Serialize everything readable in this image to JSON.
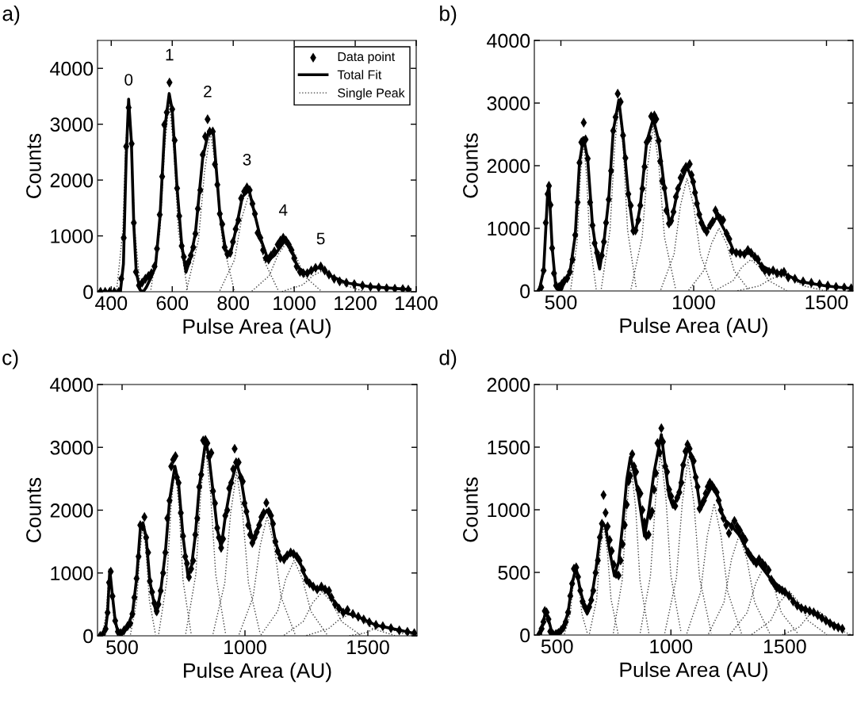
{
  "chart_data": [
    {
      "type": "scatter",
      "title": "a)",
      "xlabel": "Pulse Area (AU)",
      "ylabel": "Counts",
      "xlim": [
        355,
        1400
      ],
      "ylim": [
        0,
        4500
      ],
      "xticks": [
        400,
        600,
        800,
        1000,
        1200,
        1400
      ],
      "yticks": [
        0,
        1000,
        2000,
        3000,
        4000
      ],
      "legend": "top right",
      "annotations": [
        {
          "text": "0",
          "x": 457,
          "y": 3298
        },
        {
          "text": "1",
          "x": 591,
          "y": 3746
        },
        {
          "text": "2",
          "x": 716,
          "y": 3088
        },
        {
          "text": "3",
          "x": 845,
          "y": 1868
        },
        {
          "text": "4",
          "x": 964,
          "y": 966
        },
        {
          "text": "5",
          "x": 1087,
          "y": 454
        }
      ],
      "series": [
        {
          "name": "Data point",
          "marker": "diamond",
          "color": "#000000",
          "x": [
            365,
            380,
            395,
            410,
            425,
            433,
            441,
            449,
            457,
            467,
            474,
            481,
            491,
            501,
            512,
            522,
            532,
            542,
            550,
            559,
            567,
            574,
            582,
            591,
            600,
            608,
            616,
            623,
            631,
            638,
            646,
            653,
            661,
            669,
            676,
            684,
            692,
            700,
            708,
            716,
            723,
            733,
            740,
            748,
            756,
            764,
            772,
            781,
            790,
            799,
            808,
            817,
            826,
            836,
            845,
            854,
            863,
            871,
            880,
            889,
            898,
            907,
            916,
            924,
            935,
            946,
            955,
            964,
            973,
            982,
            991,
            1000,
            1008,
            1019,
            1030,
            1043,
            1056,
            1070,
            1087,
            1100,
            1114,
            1131,
            1149,
            1171,
            1197,
            1224,
            1250,
            1277,
            1303,
            1330,
            1356,
            1374
          ],
          "values": [
            0,
            0,
            0,
            0,
            0,
            234,
            966,
            2600,
            3298,
            2650,
            1234,
            356,
            112,
            161,
            234,
            283,
            332,
            454,
            771,
            1380,
            2063,
            2990,
            3210,
            3746,
            3268,
            2712,
            1854,
            1356,
            820,
            624,
            478,
            527,
            649,
            795,
            1039,
            1488,
            1820,
            2454,
            2780,
            3088,
            2868,
            2868,
            2283,
            1917,
            1395,
            1210,
            795,
            673,
            698,
            893,
            1122,
            1283,
            1673,
            1795,
            1868,
            1820,
            1576,
            1395,
            1054,
            966,
            746,
            600,
            576,
            649,
            722,
            844,
            917,
            966,
            917,
            844,
            746,
            600,
            454,
            356,
            332,
            332,
            380,
            429,
            454,
            380,
            307,
            234,
            185,
            161,
            137,
            112,
            88,
            78,
            63,
            54,
            49,
            39
          ]
        },
        {
          "name": "Total Fit",
          "type": "line",
          "line_style": "solid",
          "color": "#000000",
          "x": [
            355,
            430,
            440,
            449,
            457,
            466,
            474,
            482,
            495,
            505,
            515,
            530,
            545,
            560,
            575,
            590,
            600,
            616,
            631,
            645,
            660,
            676,
            700,
            720,
            735,
            756,
            775,
            790,
            808,
            830,
            852,
            870,
            890,
            915,
            935,
            970,
            990,
            1010,
            1040,
            1070,
            1090,
            1120,
            1170,
            1250,
            1380
          ],
          "values": [
            0,
            0,
            500,
            2400,
            3450,
            2700,
            1200,
            350,
            30,
            0,
            80,
            250,
            450,
            1350,
            2900,
            3550,
            3250,
            1850,
            850,
            350,
            600,
            1050,
            2400,
            2880,
            2850,
            1400,
            750,
            650,
            1100,
            1700,
            1820,
            1400,
            950,
            560,
            650,
            920,
            760,
            450,
            320,
            420,
            430,
            280,
            160,
            90,
            40
          ]
        },
        {
          "name": "Single Peak",
          "type": "line",
          "line_style": "dotted",
          "color": "#404040",
          "x": [
            418,
            438,
            447,
            457,
            467,
            477,
            496
          ],
          "values": [
            37,
            1105,
            2567,
            3400,
            2567,
            1105,
            37
          ]
        },
        {
          "type": "line",
          "line_style": "dotted",
          "color": "#404040",
          "x": [
            530,
            560,
            575,
            590,
            605,
            620,
            650
          ],
          "values": [
            37,
            1105,
            2567,
            3400,
            2567,
            1105,
            37
          ]
        },
        {
          "type": "line",
          "line_style": "dotted",
          "color": "#404040",
          "x": [
            647,
            686,
            706,
            725,
            745,
            764,
            803
          ],
          "values": [
            31,
            926,
            2152,
            2850,
            2152,
            926,
            31
          ]
        },
        {
          "type": "line",
          "line_style": "dotted",
          "color": "#404040",
          "x": [
            756,
            804,
            828,
            852,
            876,
            900,
            948
          ],
          "values": [
            19,
            569,
            1321,
            1750,
            1321,
            569,
            19
          ]
        },
        {
          "type": "line",
          "line_style": "dotted",
          "color": "#404040",
          "x": [
            861,
            918,
            947,
            975,
            1004,
            1032,
            1089
          ],
          "values": [
            10,
            286,
            664,
            880,
            664,
            286,
            10
          ]
        },
        {
          "type": "line",
          "line_style": "dotted",
          "color": "#404040",
          "x": [
            960,
            1028,
            1061,
            1095,
            1129,
            1163,
            1230
          ],
          "values": [
            4,
            124,
            287,
            380,
            287,
            124,
            4
          ]
        }
      ]
    },
    {
      "type": "scatter",
      "title": "b)",
      "xlabel": "Pulse Area (AU)",
      "ylabel": "Counts",
      "xlim": [
        400,
        1600
      ],
      "ylim": [
        0,
        4000
      ],
      "xticks": [
        500,
        1000,
        1500
      ],
      "yticks": [
        0,
        1000,
        2000,
        3000,
        4000
      ],
      "series": [
        {
          "marker": "diamond",
          "color": "#000000",
          "x": [
            418,
            426,
            435,
            443,
            450,
            455,
            461,
            467,
            474,
            482,
            493,
            503,
            513,
            524,
            534,
            544,
            554,
            563,
            570,
            577,
            586,
            593,
            601,
            610,
            619,
            627,
            636,
            644,
            654,
            662,
            670,
            680,
            689,
            697,
            706,
            714,
            725,
            734,
            743,
            754,
            763,
            773,
            781,
            792,
            799,
            807,
            815,
            823,
            833,
            840,
            852,
            859,
            868,
            874,
            881,
            890,
            897,
            907,
            915,
            924,
            933,
            941,
            951,
            961,
            971,
            985,
            992,
            998,
            1005,
            1012,
            1021,
            1029,
            1039,
            1049,
            1062,
            1072,
            1082,
            1091,
            1101,
            1111,
            1124,
            1134,
            1144,
            1160,
            1175,
            1191,
            1204,
            1216,
            1230,
            1242,
            1256,
            1268,
            1284,
            1299,
            1314,
            1330,
            1340,
            1356,
            1381,
            1412,
            1443,
            1474,
            1505,
            1536,
            1567,
            1593
          ],
          "values": [
            0,
            57,
            327,
            1089,
            1547,
            1678,
            1373,
            684,
            283,
            87,
            65,
            109,
            161,
            205,
            305,
            501,
            893,
            1416,
            2048,
            2375,
            2688,
            2418,
            2113,
            1416,
            1046,
            763,
            610,
            523,
            566,
            784,
            1089,
            1460,
            1917,
            2558,
            2776,
            3150,
            3020,
            2484,
            2122,
            1547,
            1364,
            959,
            967,
            1133,
            1364,
            1634,
            1983,
            2375,
            2440,
            2789,
            2802,
            2745,
            2397,
            2070,
            1756,
            1643,
            1285,
            1076,
            1120,
            1264,
            1503,
            1634,
            1808,
            1917,
            1983,
            2026,
            1852,
            1743,
            1569,
            1394,
            1220,
            1089,
            1002,
            946,
            1046,
            1111,
            1285,
            1198,
            1155,
            1133,
            915,
            828,
            641,
            610,
            597,
            588,
            654,
            610,
            545,
            501,
            392,
            327,
            305,
            327,
            283,
            283,
            305,
            218,
            196,
            153,
            131,
            109,
            87,
            65,
            57,
            44
          ]
        },
        {
          "type": "line",
          "line_style": "solid",
          "color": "#000000",
          "x": [
            418,
            435,
            450,
            455,
            467,
            480,
            488,
            495,
            503,
            513,
            534,
            554,
            570,
            585,
            601,
            619,
            636,
            646,
            662,
            680,
            697,
            718,
            734,
            754,
            773,
            781,
            799,
            823,
            848,
            868,
            890,
            907,
            915,
            941,
            975,
            998,
            1021,
            1045,
            1072,
            1090,
            1124,
            1150,
            1191,
            1216,
            1256,
            1300,
            1340,
            1400,
            1500,
            1593
          ],
          "values": [
            0,
            330,
            1550,
            1700,
            700,
            100,
            25,
            0,
            25,
            150,
            300,
            890,
            2050,
            2450,
            2100,
            1050,
            550,
            350,
            780,
            1460,
            2550,
            3050,
            2480,
            1550,
            960,
            940,
            1360,
            2380,
            2750,
            2400,
            1640,
            1120,
            1080,
            1630,
            1980,
            1740,
            1220,
            950,
            1110,
            1180,
            910,
            640,
            600,
            600,
            400,
            310,
            280,
            150,
            80,
            40
          ]
        },
        {
          "type": "line",
          "line_style": "dotted",
          "color": "#404040",
          "x": [
            537,
            561,
            573,
            585,
            597,
            609,
            633
          ],
          "values": [
            26,
            780,
            1812,
            2400,
            1812,
            780,
            26
          ]
        },
        {
          "type": "line",
          "line_style": "dotted",
          "color": "#404040",
          "x": [
            652,
            685,
            702,
            718,
            735,
            751,
            784
          ],
          "values": [
            33,
            975,
            2265,
            3000,
            2265,
            975,
            33
          ]
        },
        {
          "type": "line",
          "line_style": "dotted",
          "color": "#404040",
          "x": [
            764,
            806,
            827,
            848,
            869,
            890,
            932
          ],
          "values": [
            29,
            861,
            2001,
            2650,
            2001,
            861,
            29
          ]
        },
        {
          "type": "line",
          "line_style": "dotted",
          "color": "#404040",
          "x": [
            876,
            926,
            950,
            975,
            1000,
            1025,
            1074
          ],
          "values": [
            20,
            585,
            1359,
            1800,
            1359,
            585,
            20
          ]
        },
        {
          "type": "line",
          "line_style": "dotted",
          "color": "#404040",
          "x": [
            981,
            1038,
            1067,
            1095,
            1124,
            1152,
            1209
          ],
          "values": [
            11,
            325,
            755,
            1000,
            755,
            325,
            11
          ]
        },
        {
          "type": "line",
          "line_style": "dotted",
          "color": "#404040",
          "x": [
            1080,
            1148,
            1181,
            1215,
            1249,
            1283,
            1350
          ],
          "values": [
            6,
            163,
            378,
            500,
            378,
            163,
            6
          ]
        },
        {
          "type": "line",
          "line_style": "dotted",
          "color": "#404040",
          "x": [
            1165,
            1248,
            1289,
            1330,
            1371,
            1413,
            1495
          ],
          "values": [
            3,
            81,
            189,
            250,
            189,
            81,
            3
          ]
        }
      ]
    },
    {
      "type": "scatter",
      "title": "c)",
      "xlabel": "Pulse Area (AU)",
      "ylabel": "Counts",
      "xlim": [
        400,
        1700
      ],
      "ylim": [
        0,
        4000
      ],
      "xticks": [
        500,
        1000,
        1500
      ],
      "yticks": [
        0,
        1000,
        2000,
        3000,
        4000
      ],
      "series": [
        {
          "marker": "diamond",
          "color": "#000000",
          "x": [
            411,
            422,
            433,
            441,
            447,
            454,
            461,
            472,
            483,
            494,
            508,
            522,
            533,
            542,
            550,
            559,
            567,
            574,
            583,
            591,
            598,
            606,
            613,
            622,
            631,
            641,
            648,
            657,
            667,
            676,
            684,
            693,
            700,
            708,
            717,
            723,
            730,
            739,
            748,
            757,
            764,
            772,
            781,
            789,
            798,
            806,
            814,
            822,
            830,
            839,
            847,
            854,
            863,
            870,
            878,
            887,
            894,
            903,
            911,
            920,
            928,
            936,
            944,
            952,
            958,
            964,
            974,
            983,
            991,
            998,
            1006,
            1013,
            1021,
            1030,
            1039,
            1048,
            1058,
            1067,
            1076,
            1087,
            1097,
            1106,
            1114,
            1124,
            1133,
            1144,
            1159,
            1172,
            1186,
            1198,
            1211,
            1222,
            1237,
            1250,
            1263,
            1278,
            1294,
            1311,
            1326,
            1342,
            1352,
            1367,
            1383,
            1400,
            1417,
            1439,
            1461,
            1483,
            1506,
            1533,
            1561,
            1594,
            1628,
            1661,
            1689
          ],
          "values": [
            0,
            22,
            109,
            370,
            848,
            1022,
            630,
            239,
            65,
            43,
            87,
            152,
            196,
            348,
            609,
            913,
            1261,
            1761,
            1739,
            1891,
            1565,
            1326,
            870,
            696,
            522,
            391,
            500,
            717,
            1000,
            1326,
            1870,
            2152,
            2696,
            2804,
            2861,
            2522,
            2435,
            1957,
            1587,
            1261,
            1152,
            935,
            1065,
            1196,
            1609,
            1870,
            2370,
            2565,
            3109,
            3117,
            3065,
            2848,
            2913,
            2304,
            2109,
            1717,
            1565,
            1400,
            1543,
            1913,
            2000,
            2348,
            2435,
            2652,
            2978,
            2761,
            2761,
            2522,
            2457,
            2109,
            1978,
            1761,
            1609,
            1478,
            1565,
            1652,
            1761,
            1891,
            1957,
            2117,
            1978,
            1913,
            1783,
            1500,
            1348,
            1239,
            1217,
            1283,
            1326,
            1304,
            1261,
            1196,
            1043,
            891,
            835,
            783,
            739,
            783,
            739,
            717,
            609,
            500,
            435,
            370,
            413,
            348,
            304,
            261,
            217,
            174,
            152,
            122,
            87,
            65,
            43
          ]
        },
        {
          "type": "line",
          "line_style": "solid",
          "color": "#000000",
          "x": [
            411,
            433,
            441,
            450,
            461,
            472,
            483,
            495,
            522,
            542,
            559,
            574,
            585,
            598,
            613,
            631,
            640,
            657,
            676,
            693,
            715,
            730,
            748,
            768,
            781,
            798,
            814,
            840,
            854,
            870,
            887,
            903,
            920,
            944,
            966,
            983,
            1006,
            1032,
            1048,
            1067,
            1090,
            1106,
            1124,
            1144,
            1159,
            1195,
            1222,
            1250,
            1294,
            1326,
            1352,
            1400,
            1461,
            1533,
            1628,
            1689
          ],
          "values": [
            0,
            110,
            370,
            1050,
            630,
            240,
            60,
            0,
            150,
            350,
            910,
            1700,
            1800,
            1560,
            870,
            500,
            350,
            710,
            1320,
            2150,
            2700,
            2420,
            1580,
            950,
            1060,
            1600,
            2370,
            3100,
            2840,
            2300,
            1710,
            1400,
            1900,
            2430,
            2750,
            2520,
            1970,
            1500,
            1650,
            1890,
            2000,
            1900,
            1500,
            1240,
            1220,
            1320,
            1190,
            890,
            740,
            740,
            600,
            380,
            300,
            170,
            90,
            40
          ]
        },
        {
          "type": "line",
          "line_style": "dotted",
          "color": "#404040",
          "x": [
            420,
            435,
            443,
            450,
            458,
            465,
            480
          ],
          "values": [
            12,
            341,
            793,
            1050,
            793,
            341,
            12
          ]
        },
        {
          "type": "line",
          "line_style": "dotted",
          "color": "#404040",
          "x": [
            534,
            560,
            572,
            585,
            598,
            611,
            636
          ],
          "values": [
            19,
            569,
            1321,
            1750,
            1321,
            569,
            19
          ]
        },
        {
          "type": "line",
          "line_style": "dotted",
          "color": "#404040",
          "x": [
            649,
            682,
            699,
            715,
            732,
            748,
            781
          ],
          "values": [
            30,
            878,
            2039,
            2700,
            2039,
            878,
            30
          ]
        },
        {
          "type": "line",
          "line_style": "dotted",
          "color": "#404040",
          "x": [
            759,
            800,
            820,
            840,
            860,
            881,
            921
          ],
          "values": [
            33,
            975,
            2265,
            3000,
            2265,
            975,
            33
          ]
        },
        {
          "type": "line",
          "line_style": "dotted",
          "color": "#404040",
          "x": [
            870,
            918,
            942,
            966,
            990,
            1014,
            1062
          ],
          "values": [
            29,
            845,
            1963,
            2600,
            1963,
            845,
            29
          ]
        },
        {
          "type": "line",
          "line_style": "dotted",
          "color": "#404040",
          "x": [
            976,
            1033,
            1062,
            1090,
            1119,
            1147,
            1204
          ],
          "values": [
            21,
            618,
            1435,
            1900,
            1435,
            618,
            21
          ]
        },
        {
          "type": "line",
          "line_style": "dotted",
          "color": "#404040",
          "x": [
            1065,
            1133,
            1166,
            1200,
            1234,
            1268,
            1335
          ],
          "values": [
            13,
            390,
            906,
            1200,
            906,
            390,
            13
          ]
        },
        {
          "type": "line",
          "line_style": "dotted",
          "color": "#404040",
          "x": [
            1159,
            1237,
            1276,
            1315,
            1354,
            1393,
            1471
          ],
          "values": [
            8,
            228,
            529,
            700,
            529,
            228,
            8
          ]
        },
        {
          "type": "line",
          "line_style": "dotted",
          "color": "#404040",
          "x": [
            1250,
            1340,
            1385,
            1430,
            1475,
            1520,
            1610
          ],
          "values": [
            4,
            114,
            264,
            350,
            264,
            114,
            4
          ]
        },
        {
          "type": "line",
          "line_style": "dotted",
          "color": "#404040",
          "x": [
            1425,
            1493,
            1526,
            1560,
            1594,
            1628,
            1695
          ],
          "values": [
            2,
            49,
            113,
            150,
            113,
            49,
            2
          ]
        }
      ]
    },
    {
      "type": "scatter",
      "title": "d)",
      "xlabel": "Pulse Area (AU)",
      "ylabel": "Counts",
      "xlim": [
        400,
        1800
      ],
      "ylim": [
        0,
        2000
      ],
      "xticks": [
        500,
        1000,
        1500
      ],
      "yticks": [
        0,
        500,
        1000,
        1500,
        2000
      ],
      "series": [
        {
          "marker": "diamond",
          "color": "#000000",
          "x": [
            422,
            432,
            440,
            446,
            454,
            462,
            470,
            482,
            494,
            506,
            518,
            528,
            538,
            548,
            558,
            566,
            574,
            584,
            592,
            602,
            612,
            622,
            632,
            641,
            650,
            659,
            669,
            679,
            688,
            697,
            704,
            713,
            722,
            731,
            740,
            749,
            759,
            770,
            779,
            788,
            797,
            806,
            814,
            821,
            830,
            838,
            847,
            856,
            866,
            875,
            884,
            892,
            902,
            909,
            917,
            926,
            934,
            941,
            951,
            958,
            965,
            975,
            983,
            992,
            1001,
            1010,
            1019,
            1028,
            1037,
            1046,
            1054,
            1064,
            1073,
            1082,
            1090,
            1100,
            1109,
            1117,
            1126,
            1135,
            1145,
            1153,
            1162,
            1171,
            1181,
            1189,
            1201,
            1210,
            1219,
            1231,
            1243,
            1255,
            1267,
            1279,
            1291,
            1303,
            1315,
            1327,
            1339,
            1351,
            1363,
            1375,
            1387,
            1402,
            1414,
            1429,
            1441,
            1453,
            1465,
            1477,
            1489,
            1501,
            1519,
            1537,
            1555,
            1573,
            1591,
            1609,
            1627,
            1645,
            1663,
            1681,
            1699,
            1717,
            1735,
            1753
          ],
          "values": [
            7,
            50,
            105,
            192,
            181,
            126,
            28,
            7,
            7,
            17,
            39,
            61,
            105,
            181,
            312,
            410,
            529,
            540,
            464,
            355,
            268,
            224,
            192,
            224,
            279,
            355,
            497,
            595,
            780,
            889,
            1118,
            976,
            867,
            758,
            671,
            562,
            486,
            475,
            595,
            725,
            878,
            1041,
            1227,
            1270,
            1444,
            1346,
            1303,
            1161,
            1129,
            998,
            900,
            791,
            802,
            954,
            987,
            1161,
            1292,
            1532,
            1455,
            1651,
            1542,
            1346,
            1303,
            1161,
            1107,
            1052,
            1030,
            1096,
            1139,
            1216,
            1357,
            1466,
            1521,
            1488,
            1423,
            1390,
            1259,
            1183,
            1009,
            1041,
            1074,
            1129,
            1183,
            1216,
            1194,
            1172,
            1139,
            1074,
            998,
            932,
            878,
            813,
            867,
            911,
            867,
            834,
            791,
            758,
            660,
            627,
            595,
            573,
            605,
            573,
            551,
            519,
            442,
            410,
            377,
            366,
            355,
            344,
            312,
            268,
            235,
            214,
            203,
            192,
            181,
            159,
            137,
            115,
            94,
            72,
            61,
            50
          ]
        },
        {
          "type": "line",
          "line_style": "solid",
          "color": "#000000",
          "x": [
            422,
            440,
            450,
            462,
            480,
            506,
            528,
            548,
            566,
            583,
            602,
            622,
            632,
            650,
            669,
            688,
            700,
            713,
            731,
            752,
            770,
            788,
            806,
            822,
            838,
            856,
            875,
            884,
            902,
            926,
            958,
            975,
            992,
            1010,
            1037,
            1054,
            1075,
            1090,
            1109,
            1130,
            1145,
            1181,
            1201,
            1231,
            1267,
            1303,
            1339,
            1387,
            1441,
            1501,
            1555,
            1609,
            1681,
            1753
          ],
          "values": [
            0,
            105,
            195,
            126,
            0,
            17,
            60,
            180,
            410,
            540,
            355,
            220,
            170,
            280,
            500,
            780,
            900,
            860,
            670,
            470,
            580,
            880,
            1240,
            1420,
            1300,
            1130,
            900,
            790,
            980,
            1300,
            1600,
            1350,
            1110,
            1020,
            1140,
            1360,
            1500,
            1420,
            1260,
            1000,
            1070,
            1190,
            1140,
            930,
            870,
            790,
            660,
            570,
            440,
            350,
            240,
            190,
            120,
            50
          ]
        },
        {
          "type": "line",
          "line_style": "dotted",
          "color": "#404040",
          "x": [
            532,
            558,
            570,
            583,
            596,
            609,
            634
          ],
          "values": [
            6,
            169,
            393,
            520,
            393,
            169,
            6
          ]
        },
        {
          "type": "line",
          "line_style": "dotted",
          "color": "#404040",
          "x": [
            642,
            674,
            689,
            705,
            721,
            737,
            768
          ],
          "values": [
            10,
            286,
            664,
            880,
            664,
            286,
            10
          ]
        },
        {
          "type": "line",
          "line_style": "dotted",
          "color": "#404040",
          "x": [
            747,
            786,
            806,
            825,
            845,
            864,
            903
          ],
          "values": [
            15,
            439,
            1019,
            1350,
            1019,
            439,
            15
          ]
        },
        {
          "type": "line",
          "line_style": "dotted",
          "color": "#404040",
          "x": [
            865,
            910,
            933,
            955,
            978,
            1000,
            1045
          ],
          "values": [
            16,
            471,
            1095,
            1450,
            1095,
            471,
            16
          ]
        },
        {
          "type": "line",
          "line_style": "dotted",
          "color": "#404040",
          "x": [
            973,
            1024,
            1050,
            1075,
            1101,
            1126,
            1177
          ],
          "values": [
            15,
            455,
            1057,
            1400,
            1057,
            455,
            15
          ]
        },
        {
          "type": "line",
          "line_style": "dotted",
          "color": "#404040",
          "x": [
            1070,
            1130,
            1160,
            1190,
            1220,
            1250,
            1310
          ],
          "values": [
            12,
            341,
            793,
            1050,
            793,
            341,
            12
          ]
        },
        {
          "type": "line",
          "line_style": "dotted",
          "color": "#404040",
          "x": [
            1165,
            1233,
            1266,
            1300,
            1334,
            1368,
            1435
          ],
          "values": [
            9,
            260,
            604,
            800,
            604,
            260,
            9
          ]
        },
        {
          "type": "line",
          "line_style": "dotted",
          "color": "#404040",
          "x": [
            1260,
            1335,
            1373,
            1410,
            1448,
            1485,
            1560
          ],
          "values": [
            6,
            179,
            415,
            550,
            415,
            179,
            6
          ]
        },
        {
          "type": "line",
          "line_style": "dotted",
          "color": "#404040",
          "x": [
            1355,
            1438,
            1479,
            1520,
            1561,
            1603,
            1685
          ],
          "values": [
            4,
            114,
            264,
            350,
            264,
            114,
            4
          ]
        },
        {
          "type": "line",
          "line_style": "dotted",
          "color": "#404040",
          "x": [
            1490,
            1565,
            1603,
            1640,
            1678,
            1715,
            1790
          ],
          "values": [
            2,
            65,
            151,
            200,
            151,
            65,
            2
          ]
        }
      ]
    }
  ]
}
